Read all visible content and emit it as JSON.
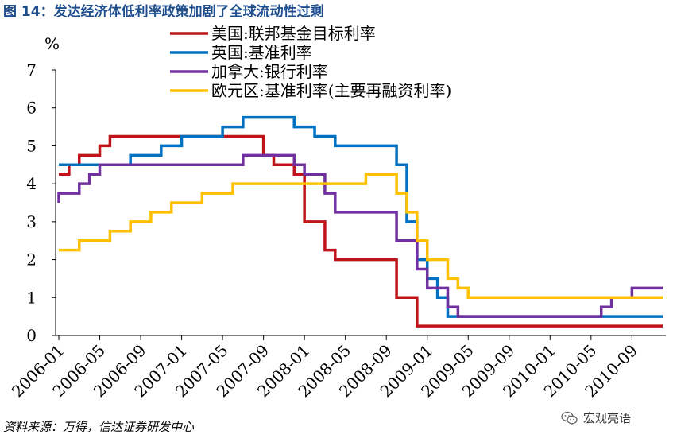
{
  "header": {
    "figure_title": "图 14：发达经济体低利率政策加剧了全球流动性过剩"
  },
  "footer": {
    "source": "资料来源：万得，信达证券研发中心",
    "watermark": "宏观亮语",
    "watermark_icon": "wechat-icon"
  },
  "chart_data": {
    "type": "line",
    "step": true,
    "ylabel": "%",
    "ylim": [
      0,
      7
    ],
    "yticks": [
      0,
      1,
      2,
      3,
      4,
      5,
      6,
      7
    ],
    "xlim": [
      "2006-01",
      "2010-12"
    ],
    "xticks": [
      "2006-01",
      "2006-05",
      "2006-09",
      "2007-01",
      "2007-05",
      "2007-09",
      "2008-01",
      "2008-05",
      "2008-09",
      "2009-01",
      "2009-05",
      "2009-09",
      "2010-01",
      "2010-05",
      "2010-09"
    ],
    "legend_position": "top",
    "grid": false,
    "series": [
      {
        "name": "美国:联邦基金目标利率",
        "color": "#c0141b",
        "points": [
          [
            "2006-01",
            4.25
          ],
          [
            "2006-02",
            4.5
          ],
          [
            "2006-03",
            4.75
          ],
          [
            "2006-05",
            5.0
          ],
          [
            "2006-06",
            5.25
          ],
          [
            "2007-09",
            4.75
          ],
          [
            "2007-10",
            4.5
          ],
          [
            "2007-12",
            4.25
          ],
          [
            "2008-01",
            3.0
          ],
          [
            "2008-03",
            2.25
          ],
          [
            "2008-04",
            2.0
          ],
          [
            "2008-10",
            1.0
          ],
          [
            "2008-12",
            0.25
          ],
          [
            "2010-12",
            0.25
          ]
        ]
      },
      {
        "name": "英国:基准利率",
        "color": "#0070c0",
        "points": [
          [
            "2006-01",
            4.5
          ],
          [
            "2006-08",
            4.75
          ],
          [
            "2006-11",
            5.0
          ],
          [
            "2007-01",
            5.25
          ],
          [
            "2007-05",
            5.5
          ],
          [
            "2007-07",
            5.75
          ],
          [
            "2007-12",
            5.5
          ],
          [
            "2008-02",
            5.25
          ],
          [
            "2008-04",
            5.0
          ],
          [
            "2008-10",
            4.5
          ],
          [
            "2008-11",
            3.0
          ],
          [
            "2008-12",
            2.0
          ],
          [
            "2009-01",
            1.5
          ],
          [
            "2009-02",
            1.0
          ],
          [
            "2009-03",
            0.5
          ],
          [
            "2010-12",
            0.5
          ]
        ]
      },
      {
        "name": "加拿大:银行利率",
        "color": "#7030a0",
        "points": [
          [
            "2006-01",
            3.5
          ],
          [
            "2006-01",
            3.75
          ],
          [
            "2006-03",
            4.0
          ],
          [
            "2006-04",
            4.25
          ],
          [
            "2006-05",
            4.5
          ],
          [
            "2007-07",
            4.75
          ],
          [
            "2007-12",
            4.5
          ],
          [
            "2008-01",
            4.25
          ],
          [
            "2008-03",
            3.75
          ],
          [
            "2008-04",
            3.25
          ],
          [
            "2008-06",
            3.25
          ],
          [
            "2008-10",
            2.5
          ],
          [
            "2008-12",
            1.75
          ],
          [
            "2009-01",
            1.25
          ],
          [
            "2009-03",
            0.75
          ],
          [
            "2009-04",
            0.5
          ],
          [
            "2010-06",
            0.75
          ],
          [
            "2010-07",
            1.0
          ],
          [
            "2010-09",
            1.25
          ],
          [
            "2010-12",
            1.25
          ]
        ]
      },
      {
        "name": "欧元区:基准利率(主要再融资利率)",
        "color": "#ffc000",
        "points": [
          [
            "2006-01",
            2.25
          ],
          [
            "2006-03",
            2.5
          ],
          [
            "2006-06",
            2.75
          ],
          [
            "2006-08",
            3.0
          ],
          [
            "2006-10",
            3.25
          ],
          [
            "2006-12",
            3.5
          ],
          [
            "2007-03",
            3.75
          ],
          [
            "2007-06",
            4.0
          ],
          [
            "2008-07",
            4.25
          ],
          [
            "2008-10",
            3.75
          ],
          [
            "2008-11",
            3.25
          ],
          [
            "2008-12",
            2.5
          ],
          [
            "2009-01",
            2.0
          ],
          [
            "2009-03",
            1.5
          ],
          [
            "2009-04",
            1.25
          ],
          [
            "2009-05",
            1.0
          ],
          [
            "2010-12",
            1.0
          ]
        ]
      }
    ]
  }
}
